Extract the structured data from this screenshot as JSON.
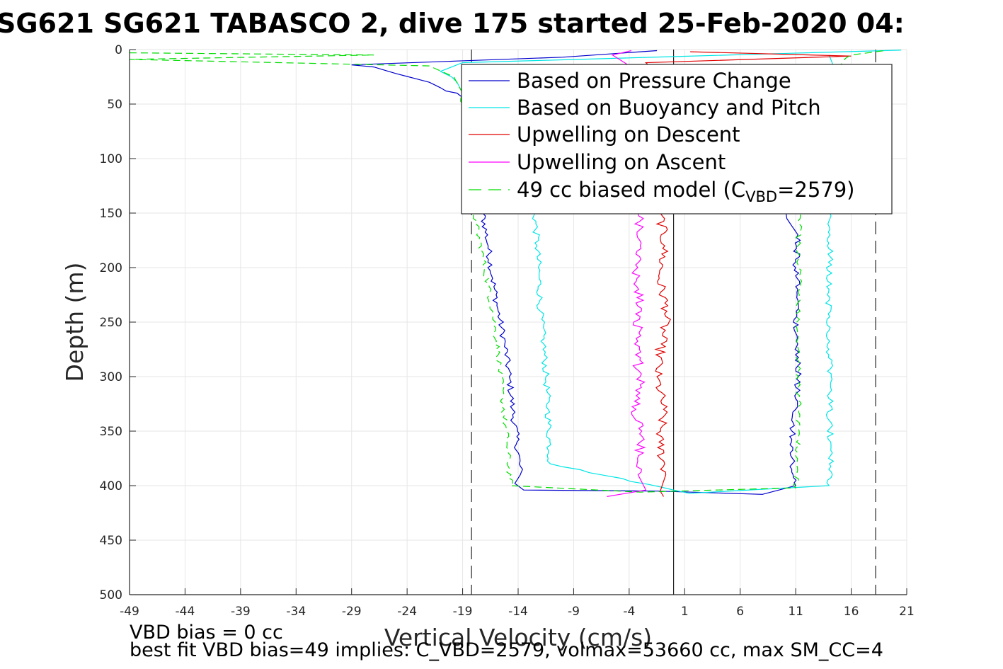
{
  "chart_data": {
    "type": "line",
    "title": "SG621 SG621 TABASCO 2, dive 175 started 25-Feb-2020 04:",
    "xlabel": "Vertical Velocity (cm/s)",
    "ylabel": "Depth (m)",
    "xlim": [
      -49,
      21
    ],
    "ylim": [
      0,
      500
    ],
    "y_reversed": true,
    "x_ticks": [
      -49,
      -44,
      -39,
      -34,
      -29,
      -24,
      -19,
      -14,
      -9,
      -4,
      1,
      6,
      11,
      16,
      21
    ],
    "y_ticks": [
      0,
      50,
      100,
      150,
      200,
      250,
      300,
      350,
      400,
      450,
      500
    ],
    "grid": true,
    "legend_position": "top-right",
    "reference_lines": {
      "solid_x": 0,
      "dashed_x": [
        -18.2,
        18.2
      ]
    },
    "series": [
      {
        "name": "Based on Pressure Change",
        "color": "#0000cc",
        "style": "solid",
        "x": [
          -1.5,
          -10,
          -29,
          -27,
          -25,
          -22,
          -21,
          -20.5,
          -19.5,
          -19,
          -18.5,
          -17.5,
          -17.2,
          -16.7,
          -16.3,
          -15.8,
          -15.2,
          -14.8,
          -14.5,
          -14.1,
          -13.8,
          -14.3,
          -13.5,
          -1.4,
          8,
          11,
          10.5,
          11,
          11.2,
          11,
          11.2,
          11,
          11.2,
          10.2,
          10.1,
          10.0
        ],
        "y": [
          1,
          7,
          14,
          16,
          22,
          30,
          35,
          38,
          40,
          44,
          80,
          100,
          150,
          180,
          210,
          240,
          270,
          300,
          330,
          360,
          390,
          398,
          404,
          405,
          408,
          400,
          370,
          330,
          300,
          260,
          230,
          200,
          170,
          155,
          148,
          130
        ]
      },
      {
        "name": "Based on Buoyancy and Pitch",
        "color": "#00e5e5",
        "style": "solid",
        "x": [
          20.5,
          -19,
          -21,
          -20,
          -19.5,
          -19,
          -18.5,
          -17,
          -15.5,
          -13,
          -12.5,
          -12.3,
          -12.1,
          -12.0,
          -11.7,
          -11.5,
          -11.3,
          -11.1,
          1.4,
          14,
          14.3,
          14,
          14.2,
          13.8,
          14,
          14.1,
          13.9,
          14.4,
          14
        ],
        "y": [
          0.5,
          12,
          20,
          25,
          30,
          40,
          45,
          80,
          100,
          130,
          150,
          180,
          210,
          240,
          270,
          300,
          330,
          380,
          407,
          400,
          370,
          340,
          300,
          260,
          220,
          190,
          160,
          15,
          5
        ]
      },
      {
        "name": "Upwelling on Descent",
        "color": "#e00000",
        "style": "solid",
        "x": [
          1.5,
          16,
          -2.5,
          -1.2,
          -0.8,
          -1.3,
          -0.6,
          -1.1,
          -1.5,
          -0.9,
          -1.3,
          -0.7,
          -1.2,
          -0.9
        ],
        "y": [
          2,
          6,
          12,
          150,
          180,
          210,
          240,
          270,
          300,
          330,
          360,
          390,
          405,
          410
        ],
        "jitter": 0.9
      },
      {
        "name": "Upwelling on Ascent",
        "color": "#ff00ff",
        "style": "solid",
        "x": [
          -6,
          -2.5,
          -3.2,
          -3.0,
          -3.4,
          -3.0,
          -3.5,
          -2.9,
          -3.3,
          -3.0,
          -3.2,
          -3.0,
          -3.2,
          -5.5,
          -3.8
        ],
        "y": [
          410,
          404,
          390,
          360,
          330,
          300,
          270,
          240,
          210,
          180,
          150,
          120,
          20,
          5,
          1
        ],
        "jitter": 1.0
      },
      {
        "name": "49 cc biased model (C_VBD=2579)",
        "color": "#00dd00",
        "style": "dashed",
        "x": [
          -49,
          -27,
          -49,
          -22,
          -19.8,
          -19,
          -18.5,
          -17.8,
          -17,
          -16.3,
          -15.8,
          -15.4,
          -15,
          -14.7,
          -3,
          11,
          11.2,
          11.3,
          11.2,
          11.1,
          11.4,
          11.2,
          11.4,
          11.3,
          16,
          19
        ],
        "y": [
          3,
          5,
          9,
          15,
          25,
          40,
          100,
          160,
          200,
          240,
          280,
          320,
          360,
          400,
          406,
          402,
          370,
          330,
          290,
          250,
          210,
          180,
          155,
          40,
          5,
          1
        ],
        "jitter": 0.5
      }
    ]
  },
  "legend": {
    "items": [
      {
        "label": "Based on Pressure Change"
      },
      {
        "label": "Based on Buoyancy and Pitch"
      },
      {
        "label": "Upwelling on Descent"
      },
      {
        "label": "Upwelling on Ascent"
      },
      {
        "label_prefix": "49 cc biased model (C",
        "label_sub": "VBD",
        "label_suffix": "=2579)"
      }
    ]
  },
  "footer": {
    "line1": "VBD bias = 0 cc",
    "line2": "best fit VBD bias=49 implies: C_VBD=2579, volmax=53660 cc, max SM_CC=4"
  }
}
